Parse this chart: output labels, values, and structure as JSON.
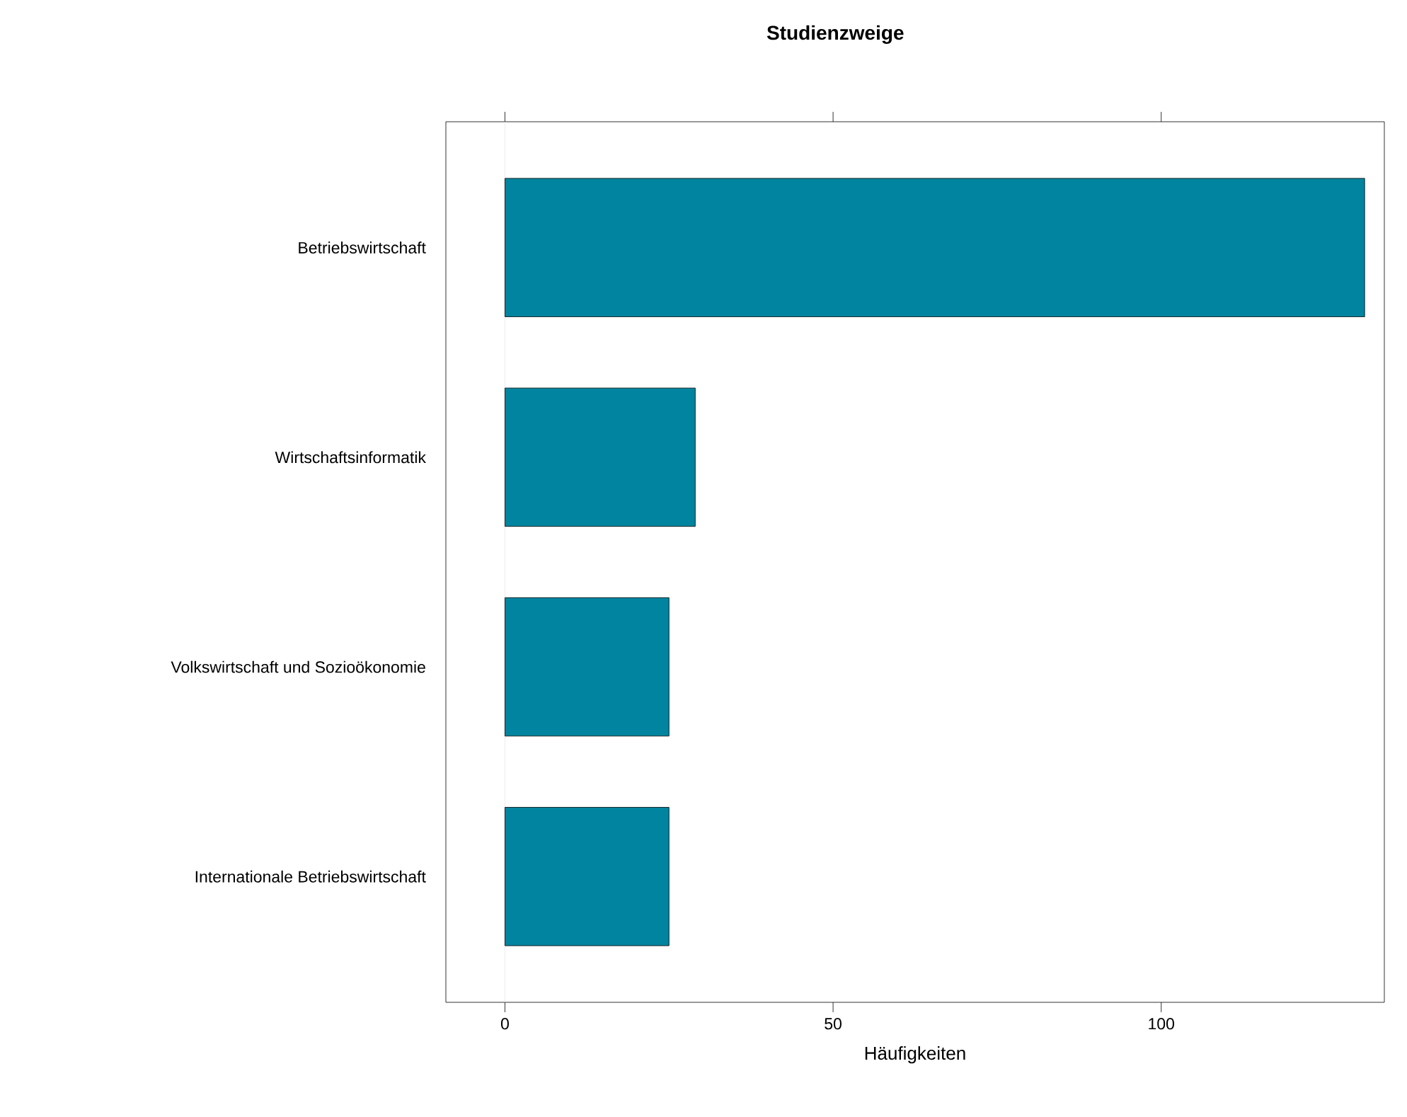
{
  "chart_data": {
    "type": "bar",
    "orientation": "horizontal",
    "title": "Studienzweige",
    "xlabel": "Häufigkeiten",
    "categories": [
      "Betriebswirtschaft",
      "Wirtschaftsinformatik",
      "Volkswirtschaft und Sozioökonomie",
      "Internationale Betriebswirtschaft"
    ],
    "values": [
      131,
      29,
      25,
      25
    ],
    "color": "#00849f",
    "xlim": [
      -9,
      134
    ],
    "xticks": [
      0,
      50,
      100
    ],
    "grid": false,
    "ref_lines": [
      {
        "axis": "x",
        "value": 0,
        "color": "#e6e6e6"
      }
    ]
  }
}
